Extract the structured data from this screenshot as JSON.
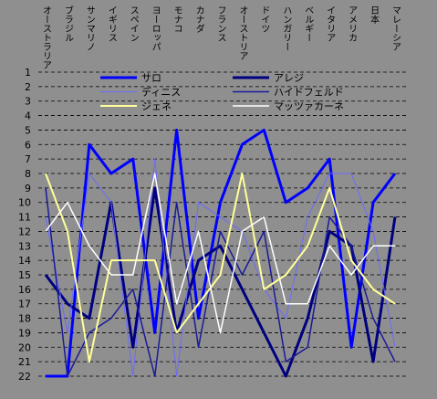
{
  "chart_data": {
    "type": "line",
    "categories": [
      "オーストラリア",
      "ブラジル",
      "サンマリノ",
      "イギリス",
      "スペイン",
      "ヨーロッパ",
      "モナコ",
      "カナダ",
      "フランス",
      "オーストリア",
      "ドイツ",
      "ハンガリー",
      "ベルギー",
      "イタリア",
      "アメリカ",
      "日本",
      "マレーシア"
    ],
    "series": [
      {
        "name": "サロ",
        "color": "#0000ff",
        "width": 3,
        "values": [
          22,
          22,
          6,
          8,
          7,
          19,
          5,
          18,
          10,
          6,
          5,
          10,
          9,
          7,
          20,
          10,
          8
        ]
      },
      {
        "name": "アレジ",
        "color": "#000080",
        "width": 3,
        "values": [
          15,
          17,
          18,
          10,
          20,
          9,
          19,
          14,
          13,
          16,
          19,
          22,
          18,
          12,
          13,
          21,
          11
        ]
      },
      {
        "name": "ディニス",
        "color": "#6a6aff",
        "width": 1,
        "values": [
          11,
          19,
          8,
          10,
          22,
          7,
          22,
          10,
          11,
          12,
          16,
          18,
          11,
          8,
          8,
          12,
          20
        ]
      },
      {
        "name": "ハイドフェルド",
        "color": "#1a1a9a",
        "width": 1.5,
        "values": [
          9,
          22,
          19,
          18,
          16,
          22,
          10,
          20,
          12,
          15,
          12,
          21,
          20,
          11,
          13,
          18,
          21
        ]
      },
      {
        "name": "ジェネ",
        "color": "#ffff99",
        "width": 2,
        "values": [
          8,
          12,
          21,
          14,
          14,
          14,
          19,
          17,
          15,
          8,
          16,
          15,
          13,
          9,
          14,
          16,
          17
        ]
      },
      {
        "name": "マッツァカーネ",
        "color": "#ffffff",
        "width": 1.5,
        "values": [
          12,
          10,
          13,
          15,
          15,
          8,
          17,
          12,
          19,
          12,
          11,
          17,
          17,
          13,
          15,
          13,
          13
        ]
      }
    ],
    "ylim": [
      1,
      22
    ],
    "yticks": [
      1,
      2,
      3,
      4,
      5,
      6,
      7,
      8,
      9,
      10,
      11,
      12,
      13,
      14,
      15,
      16,
      17,
      18,
      19,
      20,
      21,
      22
    ],
    "y_inverted": true,
    "grid": true,
    "legend": "top"
  }
}
